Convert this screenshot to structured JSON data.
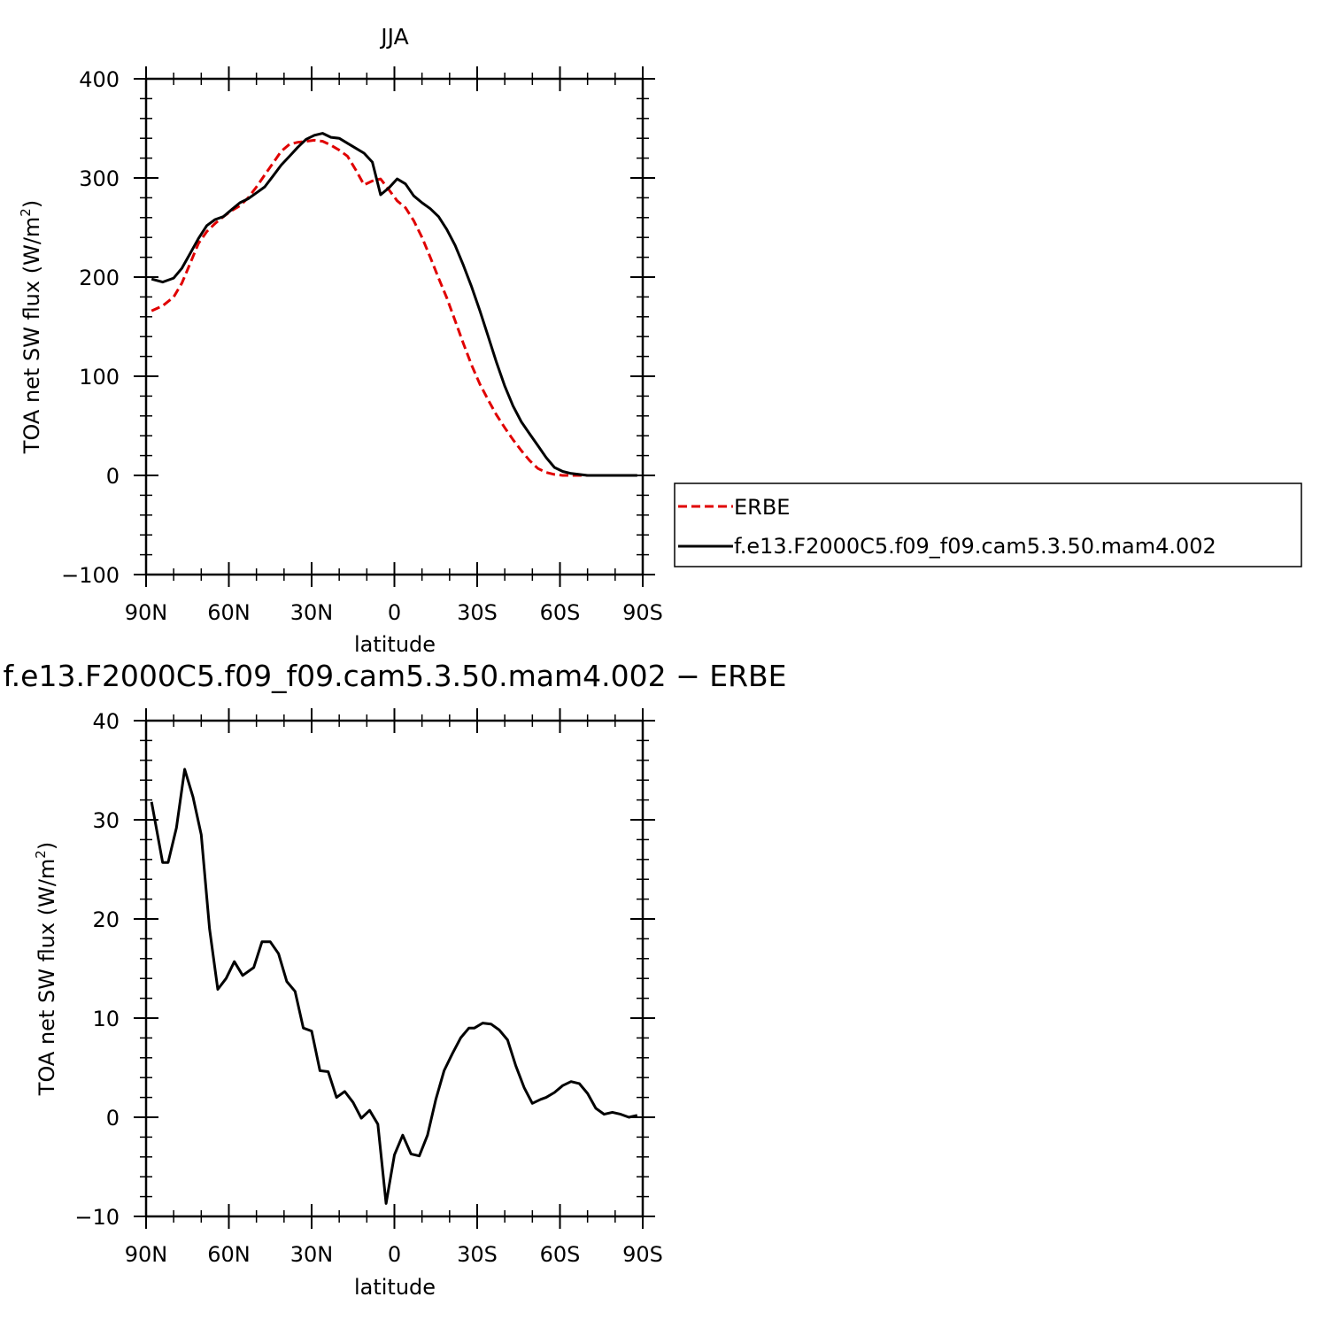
{
  "chart_data": [
    {
      "type": "line",
      "title": "JJA",
      "xlabel": "latitude",
      "ylabel": "TOA net SW flux (W/m",
      "ylabel_sup": "2",
      "ylabel_tail": ")",
      "xlim": [
        90,
        -90
      ],
      "ylim": [
        -100,
        400
      ],
      "yticks": [
        -100,
        0,
        100,
        200,
        300,
        400
      ],
      "ytick_labels": [
        "−100",
        "0",
        "100",
        "200",
        "300",
        "400"
      ],
      "xticks": [
        90,
        60,
        30,
        0,
        -30,
        -60,
        -90
      ],
      "xtick_labels": [
        "90N",
        "60N",
        "30N",
        "0",
        "30S",
        "60S",
        "90S"
      ],
      "legend": {
        "placement": "right"
      },
      "series": [
        {
          "name": "ERBE",
          "color": "#e00000",
          "style": "dashed",
          "x": [
            88,
            84,
            80,
            77,
            74,
            71,
            68,
            65,
            62,
            59,
            56,
            53,
            50,
            47,
            44,
            41,
            38,
            35,
            32,
            29,
            26,
            23,
            20,
            17,
            14,
            11,
            8,
            5,
            2,
            -1,
            -4,
            -7,
            -10,
            -13,
            -16,
            -19,
            -22,
            -25,
            -28,
            -31,
            -34,
            -37,
            -40,
            -43,
            -46,
            -49,
            -52,
            -55,
            -58,
            -61,
            -64,
            -67,
            -70,
            -73,
            -76,
            -79,
            -82,
            -85,
            -88
          ],
          "y": [
            166,
            171,
            180,
            194,
            214,
            234,
            246,
            254,
            261,
            267,
            272,
            280,
            291,
            303,
            315,
            327,
            334,
            336,
            337,
            338,
            337,
            333,
            328,
            322,
            308,
            293,
            297,
            299,
            288,
            277,
            270,
            257,
            240,
            220,
            199,
            179,
            156,
            133,
            111,
            92,
            76,
            61,
            48,
            36,
            25,
            15,
            7,
            3,
            1,
            0,
            0,
            0,
            0,
            0,
            0,
            0,
            0,
            0,
            0
          ]
        },
        {
          "name": "f.e13.F2000C5.f09_f09.cam5.3.50.mam4.002",
          "color": "#000000",
          "style": "solid",
          "x": [
            88,
            84,
            80,
            77,
            74,
            71,
            68,
            65,
            62,
            59,
            56,
            53,
            50,
            47,
            44,
            41,
            38,
            35,
            32,
            29,
            26,
            23,
            20,
            17,
            14,
            11,
            8,
            5,
            2,
            -1,
            -4,
            -7,
            -10,
            -13,
            -16,
            -19,
            -22,
            -25,
            -28,
            -31,
            -34,
            -37,
            -40,
            -43,
            -46,
            -49,
            -52,
            -55,
            -58,
            -61,
            -64,
            -67,
            -70,
            -73,
            -76,
            -79,
            -82,
            -85,
            -88
          ],
          "y": [
            198,
            195,
            199,
            209,
            224,
            239,
            252,
            258,
            261,
            268,
            275,
            279,
            285,
            291,
            302,
            313,
            322,
            331,
            339,
            343,
            345,
            341,
            340,
            335,
            330,
            325,
            316,
            283,
            290,
            299,
            294,
            282,
            275,
            269,
            261,
            248,
            232,
            212,
            190,
            166,
            140,
            114,
            90,
            70,
            54,
            42,
            30,
            18,
            8,
            4,
            2,
            1,
            0,
            0,
            0,
            0,
            0,
            0,
            0
          ]
        }
      ]
    },
    {
      "type": "line",
      "title": "f.e13.F2000C5.f09_f09.cam5.3.50.mam4.002 − ERBE",
      "xlabel": "latitude",
      "ylabel": "TOA net SW flux (W/m",
      "ylabel_sup": "2",
      "ylabel_tail": ")",
      "xlim": [
        90,
        -90
      ],
      "ylim": [
        -10,
        40
      ],
      "yticks": [
        -10,
        0,
        10,
        20,
        30,
        40
      ],
      "ytick_labels": [
        "−10",
        "0",
        "10",
        "20",
        "30",
        "40"
      ],
      "xticks": [
        90,
        60,
        30,
        0,
        -30,
        -60,
        -90
      ],
      "xtick_labels": [
        "90N",
        "60N",
        "30N",
        "0",
        "30S",
        "60S",
        "90S"
      ],
      "series": [
        {
          "color": "#000000",
          "style": "solid",
          "x": [
            88,
            84,
            82,
            79,
            76,
            73,
            70,
            67,
            64,
            61,
            58,
            55,
            51,
            48,
            45,
            42,
            39,
            36,
            33,
            30,
            27,
            24,
            21,
            18,
            15,
            12,
            9,
            6,
            3,
            0,
            -3,
            -6,
            -9,
            -12,
            -15,
            -18,
            -21,
            -24,
            -27,
            -29,
            -32,
            -35,
            -38,
            -41,
            -44,
            -47,
            -50,
            -53,
            -55,
            -58,
            -61,
            -64,
            -67,
            -70,
            -73,
            -76,
            -79,
            -82,
            -85,
            -88
          ],
          "y": [
            31.8,
            25.7,
            25.7,
            29.2,
            35.1,
            32.3,
            28.5,
            19,
            12.9,
            14,
            15.7,
            14.3,
            15.1,
            17.7,
            17.7,
            16.5,
            13.7,
            12.7,
            9,
            8.7,
            4.7,
            4.6,
            2,
            2.6,
            1.5,
            -0.1,
            0.7,
            -0.7,
            -8.7,
            -3.8,
            -1.8,
            -3.7,
            -3.9,
            -1.8,
            1.8,
            4.7,
            6.4,
            8,
            9,
            9,
            9.5,
            9.4,
            8.8,
            7.8,
            5.2,
            3,
            1.4,
            1.8,
            2,
            2.5,
            3.2,
            3.6,
            3.4,
            2.4,
            0.9,
            0.3,
            0.5,
            0.3,
            0,
            0.2
          ]
        }
      ]
    }
  ]
}
